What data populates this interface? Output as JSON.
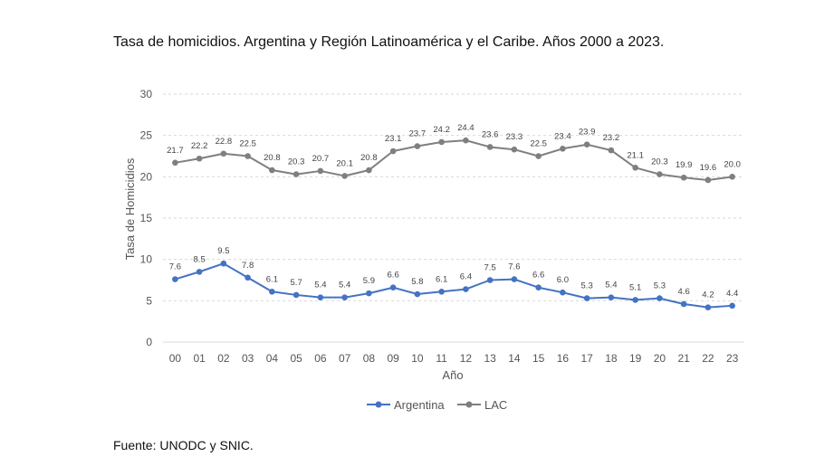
{
  "header": {
    "title": "Tasa de homicidios. Argentina y Región Latinoamérica y el Caribe. Años 2000 a 2023."
  },
  "footer": {
    "source": "Fuente: UNODC y SNIC."
  },
  "colors": {
    "argentina": "#4472c4",
    "lac": "#7f7f7f",
    "grid": "#d9d9d9"
  },
  "chart_data": {
    "type": "line",
    "title": "Tasa de homicidios. Argentina y Región Latinoamérica y el Caribe. Años 2000 a 2023.",
    "xlabel": "Año",
    "ylabel": "Tasa de Homicidios",
    "ylim": [
      0,
      30
    ],
    "yticks": [
      "0",
      "5",
      "10",
      "15",
      "20",
      "25",
      "30"
    ],
    "categories": [
      "00",
      "01",
      "02",
      "03",
      "04",
      "05",
      "06",
      "07",
      "08",
      "09",
      "10",
      "11",
      "12",
      "13",
      "14",
      "15",
      "16",
      "17",
      "18",
      "19",
      "20",
      "21",
      "22",
      "23"
    ],
    "series": [
      {
        "name": "Argentina",
        "color": "#4472c4",
        "values": [
          7.6,
          8.5,
          9.5,
          7.8,
          6.1,
          5.7,
          5.4,
          5.4,
          5.9,
          6.6,
          5.8,
          6.1,
          6.4,
          7.5,
          7.6,
          6.6,
          6.0,
          5.3,
          5.4,
          5.1,
          5.3,
          4.6,
          4.2,
          4.4
        ],
        "labels": [
          "7.6",
          "8.5",
          "9.5",
          "7.8",
          "6.1",
          "5.7",
          "5.4",
          "5.4",
          "5.9",
          "6.6",
          "5.8",
          "6.1",
          "6.4",
          "7.5",
          "7.6",
          "6.6",
          "6.0",
          "5.3",
          "5.4",
          "5.1",
          "5.3",
          "4.6",
          "4.2",
          "4.4"
        ]
      },
      {
        "name": "LAC",
        "color": "#7f7f7f",
        "values": [
          21.7,
          22.2,
          22.8,
          22.5,
          20.8,
          20.3,
          20.7,
          20.1,
          20.8,
          23.1,
          23.7,
          24.2,
          24.4,
          23.6,
          23.3,
          22.5,
          23.4,
          23.9,
          23.2,
          21.1,
          20.3,
          19.9,
          19.6,
          20.0
        ],
        "labels": [
          "21.7",
          "22.2",
          "22.8",
          "22.5",
          "20.8",
          "20.3",
          "20.7",
          "20.1",
          "20.8",
          "23.1",
          "23.7",
          "24.2",
          "24.4",
          "23.6",
          "23.3",
          "22.5",
          "23.4",
          "23.9",
          "23.2",
          "21.1",
          "20.3",
          "19.9",
          "19.6",
          "20.0"
        ]
      }
    ],
    "legend": {
      "position": "bottom",
      "entries": [
        "Argentina",
        "LAC"
      ]
    },
    "grid": true
  }
}
